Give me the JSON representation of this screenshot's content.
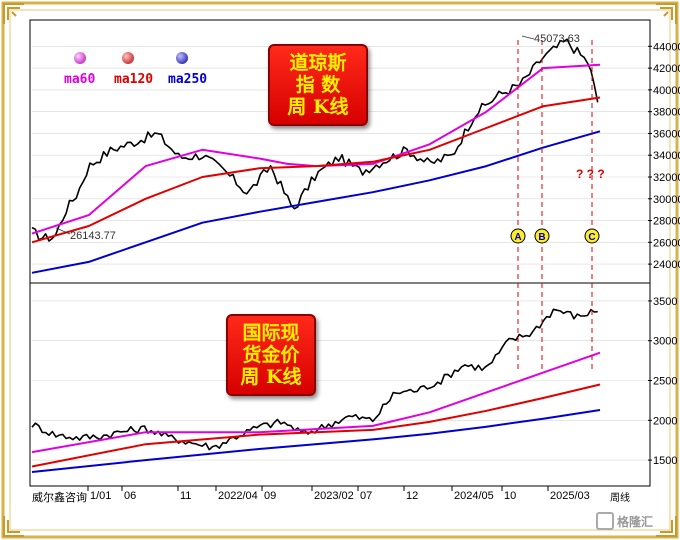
{
  "legend": [
    {
      "name": "ma60",
      "color": "#e000e0"
    },
    {
      "name": "ma120",
      "color": "#e00000"
    },
    {
      "name": "ma250",
      "color": "#0000d0"
    }
  ],
  "badges": {
    "dow": [
      "道琼斯",
      "指  数",
      "周 K线"
    ],
    "gold": [
      "国际现",
      "货金价",
      "周 K线"
    ]
  },
  "footer": {
    "source": "威尔鑫咨询",
    "wk_label": "周线"
  },
  "watermark": "格隆汇",
  "chart_data": [
    {
      "type": "line",
      "name": "dow_weekly",
      "yticks": [
        24000,
        26000,
        28000,
        30000,
        32000,
        34000,
        36000,
        38000,
        40000,
        42000,
        44000
      ],
      "annotations": {
        "high": "45073.63",
        "low": "26143.77"
      },
      "markers": [
        "A",
        "B",
        "C"
      ],
      "question_marks": "? ? ?",
      "series": [
        {
          "name": "price",
          "color": "#000000",
          "x": [
            0,
            2,
            4,
            6,
            8,
            10,
            14,
            18,
            22,
            26,
            30,
            34,
            38,
            42,
            46,
            50,
            54,
            58,
            62,
            66,
            70,
            74,
            78,
            82,
            86,
            90,
            94,
            98,
            100
          ],
          "values": [
            27000,
            26400,
            26500,
            29000,
            30500,
            33000,
            34500,
            35200,
            36000,
            33800,
            34000,
            32500,
            30500,
            33000,
            29000,
            32200,
            33800,
            32500,
            33500,
            34500,
            33200,
            34000,
            37800,
            39500,
            40500,
            43000,
            44500,
            42500,
            38000
          ]
        },
        {
          "name": "ma60",
          "x": [
            0,
            10,
            20,
            30,
            40,
            45,
            50,
            60,
            70,
            80,
            90,
            100
          ],
          "values": [
            26800,
            28500,
            33000,
            34500,
            33700,
            33200,
            33000,
            33200,
            35000,
            38000,
            42000,
            42300
          ]
        },
        {
          "name": "ma120",
          "x": [
            0,
            10,
            20,
            30,
            40,
            50,
            60,
            70,
            80,
            90,
            100
          ],
          "values": [
            26000,
            27500,
            30000,
            32000,
            32800,
            33000,
            33400,
            34500,
            36500,
            38500,
            39300
          ]
        },
        {
          "name": "ma250",
          "x": [
            0,
            10,
            20,
            30,
            40,
            50,
            60,
            70,
            80,
            90,
            100
          ],
          "values": [
            23200,
            24200,
            26000,
            27800,
            28800,
            29700,
            30600,
            31700,
            33000,
            34700,
            36200
          ]
        }
      ]
    },
    {
      "type": "line",
      "name": "gold_weekly",
      "yticks": [
        1500,
        2000,
        2500,
        3000,
        3500
      ],
      "xticks": [
        "1/01",
        "06",
        "11",
        "2022/04",
        "09",
        "2023/02",
        "07",
        "12",
        "2024/05",
        "10",
        "2025/03"
      ],
      "series": [
        {
          "name": "price",
          "color": "#000000",
          "x": [
            0,
            4,
            8,
            12,
            16,
            20,
            24,
            28,
            32,
            36,
            40,
            44,
            48,
            52,
            56,
            60,
            64,
            68,
            72,
            76,
            80,
            84,
            88,
            92,
            96,
            100
          ],
          "values": [
            1950,
            1820,
            1780,
            1800,
            1860,
            1900,
            1790,
            1720,
            1660,
            1800,
            1920,
            1980,
            1830,
            1940,
            2050,
            2000,
            2350,
            2380,
            2500,
            2700,
            2650,
            3000,
            3100,
            3400,
            3300,
            3400
          ]
        },
        {
          "name": "ma60",
          "x": [
            0,
            20,
            40,
            60,
            70,
            80,
            90,
            100
          ],
          "values": [
            1600,
            1850,
            1850,
            1930,
            2100,
            2350,
            2600,
            2850
          ]
        },
        {
          "name": "ma120",
          "x": [
            0,
            20,
            40,
            60,
            70,
            80,
            90,
            100
          ],
          "values": [
            1420,
            1700,
            1820,
            1880,
            1980,
            2120,
            2280,
            2450
          ]
        },
        {
          "name": "ma250",
          "x": [
            0,
            20,
            40,
            60,
            70,
            80,
            90,
            100
          ],
          "values": [
            1350,
            1500,
            1640,
            1760,
            1830,
            1920,
            2020,
            2130
          ]
        }
      ]
    }
  ]
}
